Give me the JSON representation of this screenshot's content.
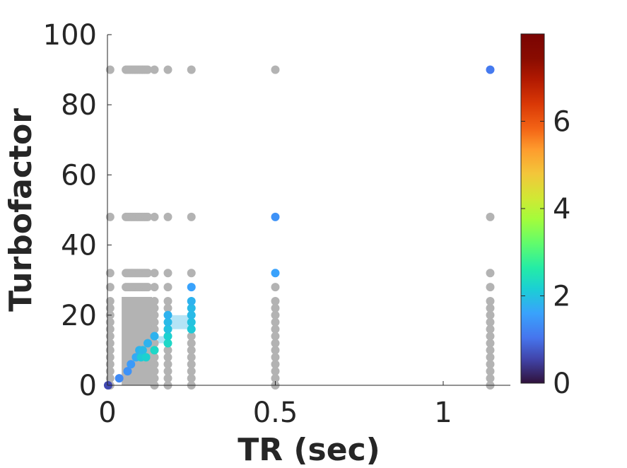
{
  "chart_data": {
    "type": "scatter",
    "xlabel": "TR (sec)",
    "ylabel": "Turbofactor",
    "xlim": [
      0,
      1.2
    ],
    "ylim": [
      0,
      100
    ],
    "xticks": [
      {
        "value": 0,
        "label": "0"
      },
      {
        "value": 0.5,
        "label": "0.5"
      },
      {
        "value": 1,
        "label": "1"
      }
    ],
    "yticks": [
      {
        "value": 0,
        "label": "0"
      },
      {
        "value": 20,
        "label": "20"
      },
      {
        "value": 40,
        "label": "40"
      },
      {
        "value": 60,
        "label": "60"
      },
      {
        "value": 80,
        "label": "80"
      },
      {
        "value": 100,
        "label": "100"
      }
    ],
    "grid": false,
    "legend": "none",
    "colorbar": {
      "colormap": "turbo",
      "range": [
        0,
        8
      ],
      "ticks": [
        {
          "value": 0,
          "label": "0"
        },
        {
          "value": 2,
          "label": "2"
        },
        {
          "value": 4,
          "label": "4"
        },
        {
          "value": 6,
          "label": "6"
        }
      ]
    },
    "gray_color": "#b3b3b3",
    "gray_rows": [
      {
        "y": 90,
        "x": [
          0.008,
          0.055,
          0.06,
          0.065,
          0.07,
          0.075,
          0.08,
          0.085,
          0.09,
          0.095,
          0.1,
          0.105,
          0.11,
          0.115,
          0.12,
          0.14,
          0.18,
          0.25,
          0.5
        ]
      },
      {
        "y": 48,
        "x": [
          0.008,
          0.055,
          0.06,
          0.065,
          0.07,
          0.075,
          0.08,
          0.085,
          0.09,
          0.095,
          0.1,
          0.105,
          0.11,
          0.115,
          0.12,
          0.14,
          0.18,
          0.25,
          1.14
        ]
      },
      {
        "y": 32,
        "x": [
          0.008,
          0.055,
          0.06,
          0.065,
          0.07,
          0.075,
          0.08,
          0.085,
          0.09,
          0.095,
          0.1,
          0.105,
          0.11,
          0.115,
          0.12,
          0.14,
          0.18,
          0.25,
          1.14
        ]
      },
      {
        "y": 28,
        "x": [
          0.008,
          0.055,
          0.06,
          0.065,
          0.07,
          0.075,
          0.08,
          0.085,
          0.09,
          0.095,
          0.1,
          0.105,
          0.11,
          0.115,
          0.12,
          0.14,
          0.18,
          0.5,
          1.14
        ]
      }
    ],
    "gray_columns": [
      {
        "x": 0.008,
        "y": [
          0,
          2,
          4,
          6,
          8,
          10,
          12,
          14,
          16,
          18,
          20,
          22,
          24
        ]
      },
      {
        "x": 0.14,
        "y": [
          0,
          2,
          4,
          6,
          8,
          10,
          12,
          14,
          16,
          18,
          20,
          22,
          24
        ]
      },
      {
        "x": 0.18,
        "y": [
          0,
          2,
          4,
          6,
          8,
          10,
          14,
          16,
          22,
          24
        ]
      },
      {
        "x": 0.25,
        "y": [
          0,
          2,
          4,
          6,
          8,
          10,
          12,
          14
        ]
      },
      {
        "x": 0.5,
        "y": [
          0,
          2,
          4,
          6,
          8,
          10,
          12,
          14,
          16,
          18,
          20,
          22,
          24
        ]
      },
      {
        "x": 1.14,
        "y": [
          0,
          2,
          4,
          6,
          8,
          10,
          12,
          14,
          16,
          18,
          20,
          22,
          24
        ]
      }
    ],
    "gray_block": {
      "x": [
        0.055,
        0.12
      ],
      "y": [
        0,
        24
      ]
    },
    "highlight_bands": [
      {
        "x": [
          0.19,
          0.25
        ],
        "y": [
          16,
          20
        ],
        "color": "#b4e4f6"
      },
      {
        "x": [
          0.15,
          0.18
        ],
        "y": [
          12,
          14
        ],
        "color": "#b4e4f6"
      }
    ],
    "colored_points": [
      {
        "x": 0.002,
        "y": 0,
        "value": 0.6
      },
      {
        "x": 0.035,
        "y": 2,
        "value": 1.3
      },
      {
        "x": 0.06,
        "y": 4,
        "value": 1.4
      },
      {
        "x": 0.07,
        "y": 6,
        "value": 1.5
      },
      {
        "x": 0.085,
        "y": 8,
        "value": 1.7
      },
      {
        "x": 0.095,
        "y": 10,
        "value": 1.8
      },
      {
        "x": 0.1,
        "y": 8,
        "value": 2.1
      },
      {
        "x": 0.105,
        "y": 10,
        "value": 1.9
      },
      {
        "x": 0.115,
        "y": 8,
        "value": 2.2
      },
      {
        "x": 0.12,
        "y": 12,
        "value": 1.8
      },
      {
        "x": 0.14,
        "y": 10,
        "value": 2.3
      },
      {
        "x": 0.14,
        "y": 14,
        "value": 1.8
      },
      {
        "x": 0.18,
        "y": 12,
        "value": 2.3
      },
      {
        "x": 0.18,
        "y": 14,
        "value": 2.2
      },
      {
        "x": 0.18,
        "y": 16,
        "value": 2.0
      },
      {
        "x": 0.18,
        "y": 18,
        "value": 1.9
      },
      {
        "x": 0.18,
        "y": 20,
        "value": 1.8
      },
      {
        "x": 0.25,
        "y": 16,
        "value": 2.1
      },
      {
        "x": 0.25,
        "y": 18,
        "value": 2.0
      },
      {
        "x": 0.25,
        "y": 20,
        "value": 1.9
      },
      {
        "x": 0.25,
        "y": 22,
        "value": 1.9
      },
      {
        "x": 0.25,
        "y": 24,
        "value": 1.8
      },
      {
        "x": 0.25,
        "y": 28,
        "value": 1.6
      },
      {
        "x": 0.5,
        "y": 32,
        "value": 1.6
      },
      {
        "x": 0.5,
        "y": 48,
        "value": 1.4
      },
      {
        "x": 1.14,
        "y": 90,
        "value": 1.1
      }
    ]
  }
}
